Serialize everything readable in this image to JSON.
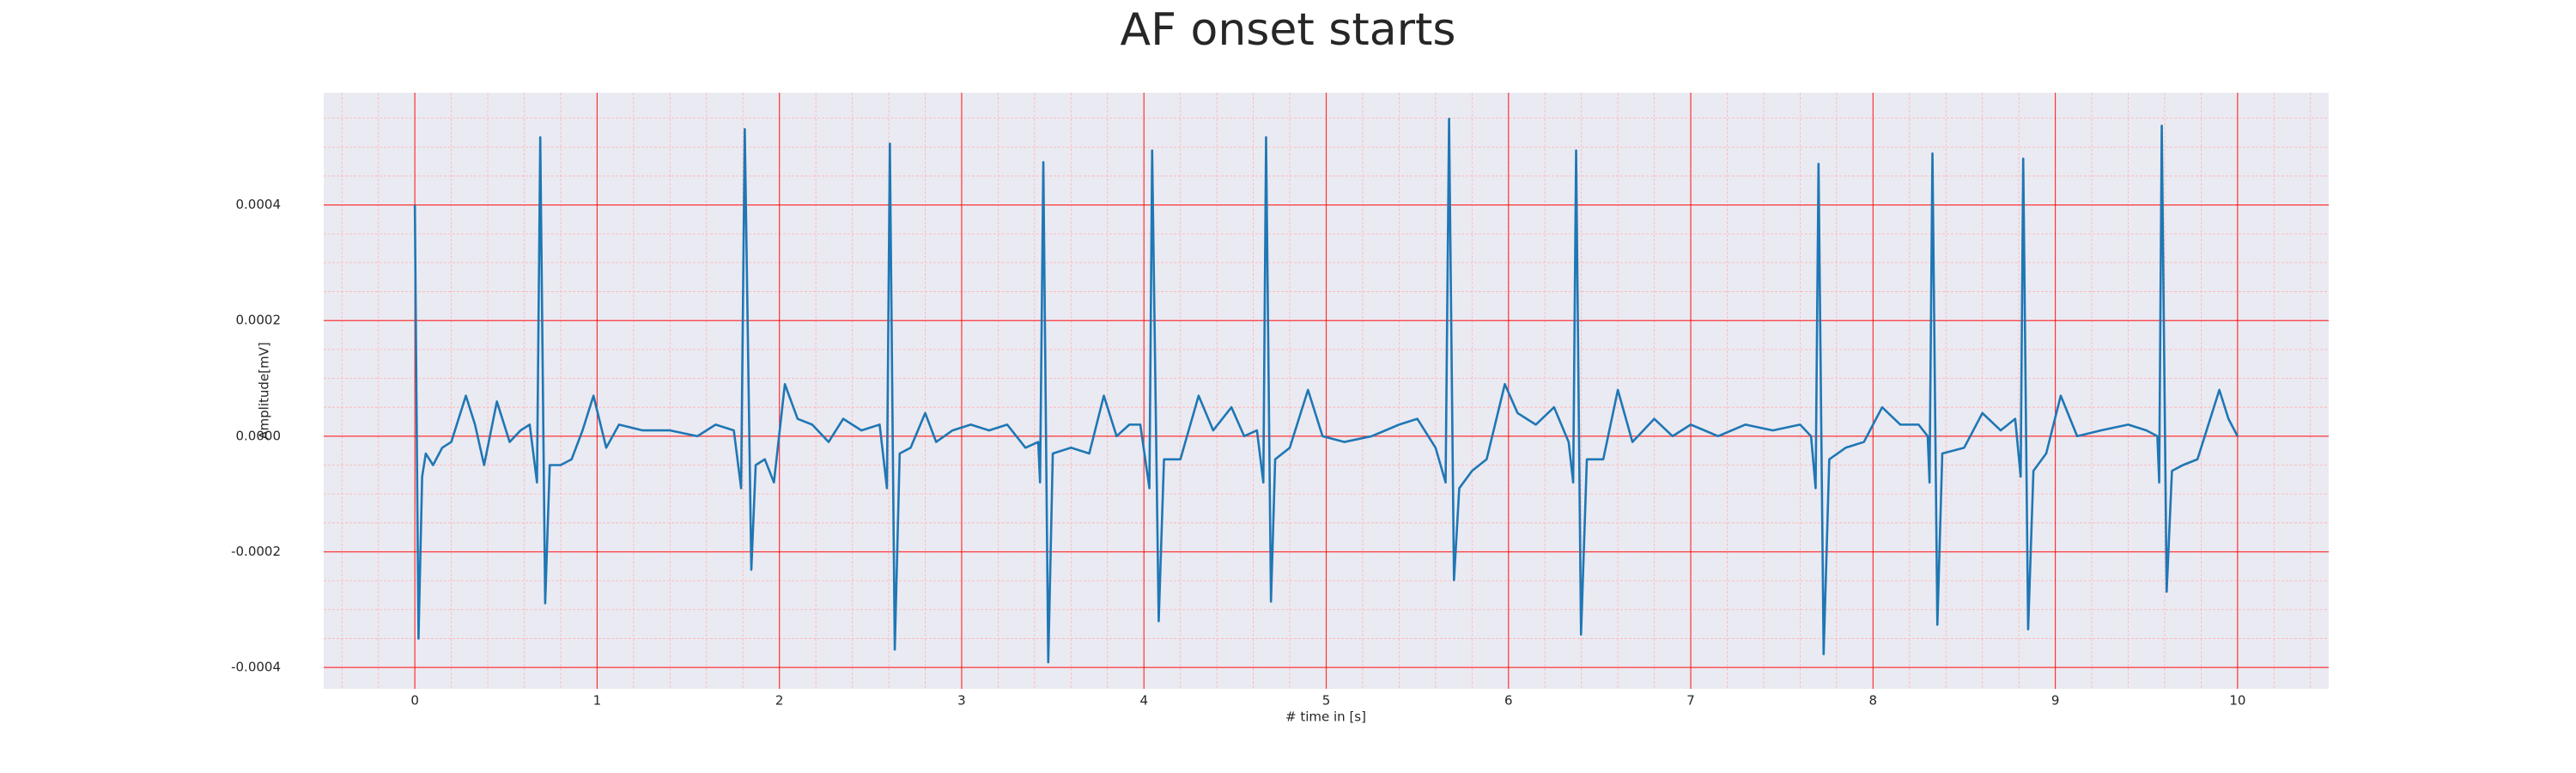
{
  "chart_data": {
    "type": "line",
    "title": "AF onset starts",
    "x_label": "# time in [s]",
    "y_label": "Amplitude[mV]",
    "color": "#1f77b4",
    "grid": true,
    "grid_color": "#ff0000",
    "minor_grid": true,
    "minor_grid_color": "#ffb3b3",
    "minor_x_step": 0.2,
    "minor_y_step": 5e-05,
    "xlim": [
      -0.5,
      10.5
    ],
    "ylim": [
      -0.000437,
      0.000594
    ],
    "xticks": [
      0,
      1,
      2,
      3,
      4,
      5,
      6,
      7,
      8,
      9,
      10
    ],
    "yticks": [
      -0.0004,
      -0.0002,
      {
        "value": 0,
        "label": "0.0000"
      },
      0.0002,
      0.0004
    ],
    "x": [
      0,
      0.02,
      0.04,
      0.06,
      0.1,
      0.15,
      0.2,
      0.28,
      0.33,
      0.38,
      0.45,
      0.52,
      0.58,
      0.63,
      0.67,
      0.688,
      0.715,
      0.74,
      0.8,
      0.86,
      0.92,
      0.98,
      1.05,
      1.12,
      1.25,
      1.4,
      1.55,
      1.65,
      1.75,
      1.79,
      1.81,
      1.846,
      1.87,
      1.92,
      1.97,
      2.03,
      2.1,
      2.18,
      2.27,
      2.35,
      2.45,
      2.55,
      2.59,
      2.606,
      2.633,
      2.66,
      2.72,
      2.8,
      2.86,
      2.95,
      3.05,
      3.15,
      3.25,
      3.35,
      3.42,
      3.43,
      3.448,
      3.475,
      3.5,
      3.6,
      3.7,
      3.78,
      3.85,
      3.92,
      3.98,
      4.03,
      4.045,
      4.081,
      4.11,
      4.2,
      4.3,
      4.38,
      4.48,
      4.55,
      4.62,
      4.655,
      4.67,
      4.697,
      4.72,
      4.8,
      4.9,
      4.98,
      5.1,
      5.25,
      5.4,
      5.5,
      5.6,
      5.655,
      5.674,
      5.701,
      5.73,
      5.8,
      5.88,
      5.98,
      6.05,
      6.15,
      6.25,
      6.33,
      6.355,
      6.371,
      6.398,
      6.43,
      6.52,
      6.6,
      6.68,
      6.8,
      6.9,
      7.0,
      7.15,
      7.3,
      7.45,
      7.6,
      7.66,
      7.685,
      7.701,
      7.729,
      7.76,
      7.85,
      7.95,
      8.05,
      8.15,
      8.25,
      8.3,
      8.31,
      8.326,
      8.353,
      8.38,
      8.5,
      8.6,
      8.7,
      8.78,
      8.81,
      8.824,
      8.851,
      8.88,
      8.95,
      9.03,
      9.12,
      9.25,
      9.4,
      9.5,
      9.56,
      9.57,
      9.584,
      9.611,
      9.64,
      9.7,
      9.78,
      9.9,
      9.95,
      10
    ],
    "values": [
      0.0004,
      -0.00035,
      -7e-05,
      -3e-05,
      -5e-05,
      -2e-05,
      -1e-05,
      7e-05,
      2e-05,
      -5e-05,
      6e-05,
      -1e-05,
      1e-05,
      2e-05,
      -8e-05,
      0.000517,
      -0.000289,
      -5e-05,
      -5e-05,
      -4e-05,
      1e-05,
      7e-05,
      -2e-05,
      2e-05,
      1e-05,
      1e-05,
      0,
      2e-05,
      1e-05,
      -9e-05,
      0.000531,
      -0.000231,
      -5e-05,
      -4e-05,
      -8e-05,
      9e-05,
      3e-05,
      2e-05,
      -1e-05,
      3e-05,
      1e-05,
      2e-05,
      -9e-05,
      0.000506,
      -0.000369,
      -3e-05,
      -2e-05,
      4e-05,
      -1e-05,
      1e-05,
      2e-05,
      1e-05,
      2e-05,
      -2e-05,
      -1e-05,
      -8e-05,
      0.000474,
      -0.000391,
      -3e-05,
      -2e-05,
      -3e-05,
      7e-05,
      0,
      2e-05,
      2e-05,
      -9e-05,
      0.000494,
      -0.00032,
      -4e-05,
      -4e-05,
      7e-05,
      1e-05,
      5e-05,
      0,
      1e-05,
      -8e-05,
      0.000517,
      -0.000286,
      -4e-05,
      -2e-05,
      8e-05,
      0,
      -1e-05,
      0,
      2e-05,
      3e-05,
      -2e-05,
      -8e-05,
      0.000549,
      -0.000249,
      -9e-05,
      -6e-05,
      -4e-05,
      9e-05,
      4e-05,
      2e-05,
      5e-05,
      -1e-05,
      -8e-05,
      0.000494,
      -0.000343,
      -4e-05,
      -4e-05,
      8e-05,
      -1e-05,
      3e-05,
      0,
      2e-05,
      0,
      2e-05,
      1e-05,
      2e-05,
      0,
      -9e-05,
      0.000471,
      -0.000377,
      -4e-05,
      -2e-05,
      -1e-05,
      5e-05,
      2e-05,
      2e-05,
      0,
      -8e-05,
      0.000489,
      -0.000326,
      -3e-05,
      -2e-05,
      4e-05,
      1e-05,
      3e-05,
      -7e-05,
      0.00048,
      -0.000334,
      -6e-05,
      -3e-05,
      7e-05,
      0,
      1e-05,
      2e-05,
      1e-05,
      0,
      -8e-05,
      0.000537,
      -0.000269,
      -6e-05,
      -5e-05,
      -4e-05,
      8e-05,
      3e-05,
      0
    ]
  }
}
